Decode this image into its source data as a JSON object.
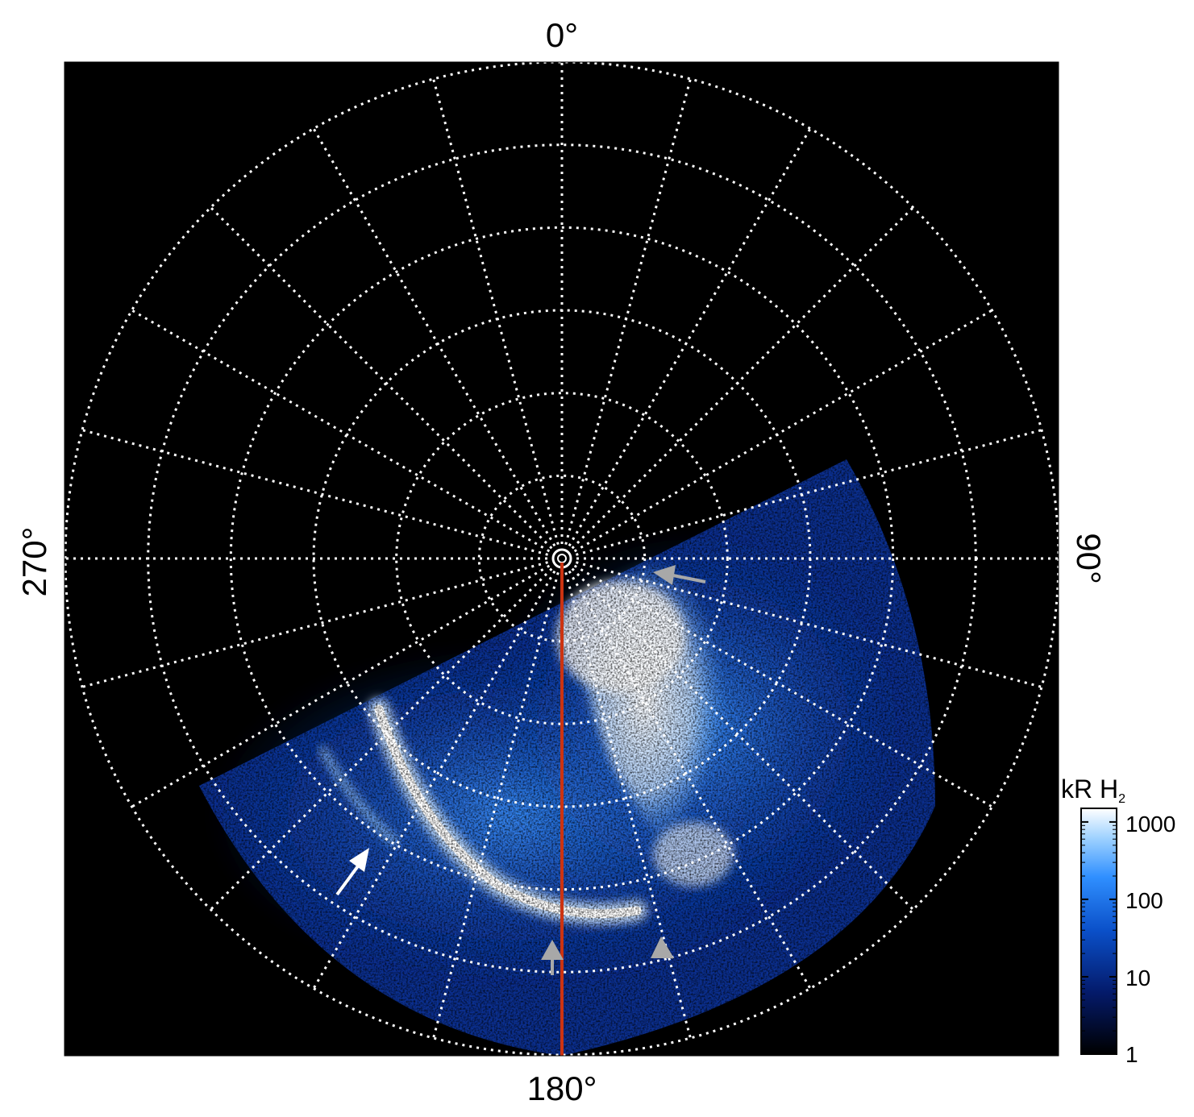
{
  "figure": {
    "labels": {
      "top": "0°",
      "bottom": "180°",
      "left": "270°",
      "right": "90°"
    },
    "colorbar": {
      "title_main": "kR H",
      "title_sub": "2",
      "ticks": [
        "1000",
        "100",
        "10",
        "1"
      ],
      "scale": "log",
      "range": [
        1,
        1500
      ]
    },
    "colors": {
      "background": "#000000",
      "grid": "#ffffff",
      "meridian_line": "#cc3311",
      "aurora_bright": "#ffffff",
      "aurora_mid": "#2f8fff",
      "aurora_dim": "#08206e",
      "arrow_white": "#ffffff",
      "arrow_grey": "#a8a8a8"
    },
    "grid": {
      "longitude_step_deg": 15,
      "latitude_rings": 6
    }
  }
}
